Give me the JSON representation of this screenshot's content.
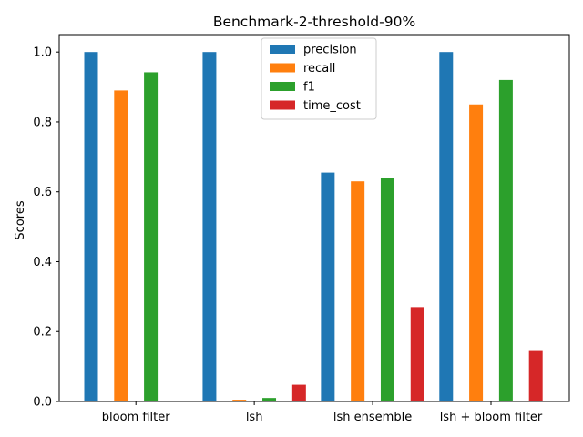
{
  "chart_data": {
    "type": "bar",
    "title": "Benchmark-2-threshold-90%",
    "xlabel": "",
    "ylabel": "Scores",
    "categories": [
      "bloom filter",
      "lsh",
      "lsh ensemble",
      "lsh + bloom filter"
    ],
    "series": [
      {
        "name": "precision",
        "color": "#1f77b4",
        "values": [
          1.0,
          1.0,
          0.655,
          1.0
        ]
      },
      {
        "name": "recall",
        "color": "#ff7f0e",
        "values": [
          0.89,
          0.005,
          0.63,
          0.85
        ]
      },
      {
        "name": "f1",
        "color": "#2ca02c",
        "values": [
          0.942,
          0.01,
          0.64,
          0.92
        ]
      },
      {
        "name": "time_cost",
        "color": "#d62728",
        "values": [
          0.002,
          0.048,
          0.27,
          0.147
        ]
      }
    ],
    "ylim": [
      0,
      1.05
    ],
    "yticks": [
      "0.0",
      "0.2",
      "0.4",
      "0.6",
      "0.8",
      "1.0"
    ],
    "ytick_values": [
      0.0,
      0.2,
      0.4,
      0.6,
      0.8,
      1.0
    ],
    "grid": false,
    "legend_position": "top-center"
  }
}
